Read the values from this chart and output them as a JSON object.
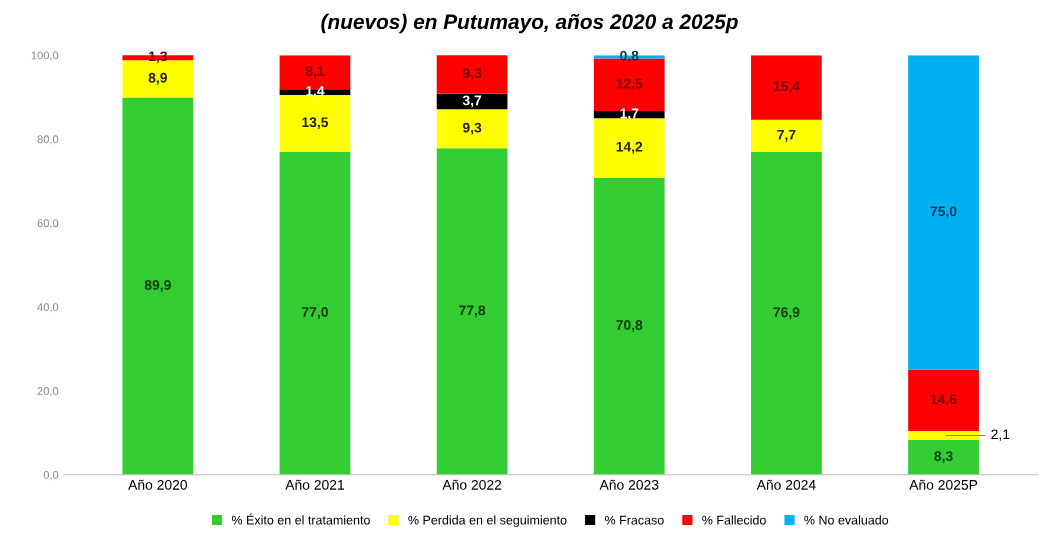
{
  "chart_data": {
    "type": "bar",
    "title": "(nuevos) en Putumayo, años 2020 a 2025p",
    "stacked": true,
    "categories": [
      "Año 2020",
      "Año 2021",
      "Año 2022",
      "Año 2023",
      "Año 2024",
      "Año 2025P"
    ],
    "series": [
      {
        "name": "% Éxito en el tratamiento",
        "color": "#33cc33",
        "values": [
          89.9,
          77.0,
          77.8,
          70.8,
          76.9,
          8.3
        ],
        "value_labels": [
          "89,9",
          "77,0",
          "77,8",
          "70,8",
          "76,9",
          "8,3"
        ]
      },
      {
        "name": "% Perdida en el seguimiento",
        "color": "#ffff00",
        "values": [
          8.9,
          13.5,
          9.3,
          14.2,
          7.7,
          2.1
        ],
        "value_labels": [
          "8,9",
          "13,5",
          "9,3",
          "14,2",
          "7,7",
          null
        ]
      },
      {
        "name": "% Fracaso",
        "color": "#000000",
        "values": [
          null,
          1.4,
          3.7,
          1.7,
          null,
          null
        ],
        "value_labels": [
          null,
          "1,4",
          "3,7",
          "1,7",
          null,
          null
        ]
      },
      {
        "name": "% Fallecido",
        "color": "#ff0000",
        "values": [
          1.3,
          8.1,
          9.3,
          12.5,
          15.4,
          14.6
        ],
        "value_labels": [
          "1,3",
          "8,1",
          "9,3",
          "12,5",
          "15,4",
          "14,6"
        ]
      },
      {
        "name": "% No evaluado",
        "color": "#00b0f0",
        "values": [
          null,
          null,
          null,
          0.8,
          null,
          75.0
        ],
        "value_labels": [
          null,
          null,
          null,
          "0,8",
          null,
          "75,0"
        ]
      }
    ],
    "ylim": [
      0,
      100
    ],
    "yticks": [
      {
        "value": 0,
        "label": "0,0"
      },
      {
        "value": 20,
        "label": "20,0"
      },
      {
        "value": 40,
        "label": "40,0"
      },
      {
        "value": 60,
        "label": "60,0"
      },
      {
        "value": 80,
        "label": "80,0"
      },
      {
        "value": 100,
        "label": "100,0"
      }
    ],
    "annotations": [
      {
        "text": "2,1",
        "x": "Año 2025P",
        "y": 9.35
      }
    ],
    "legend": "bottom",
    "grid": false
  }
}
